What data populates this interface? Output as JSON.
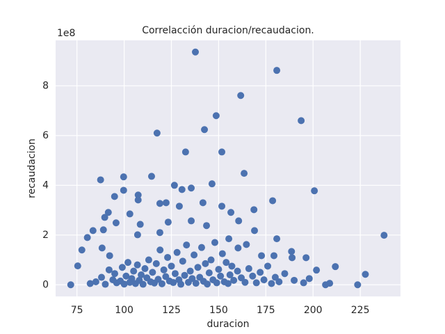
{
  "chart_data": {
    "type": "scatter",
    "title": "Correlacción duracion/recaudacion.",
    "x_label": "duracion",
    "y_label": "recaudacion",
    "y_offset_text": "1e8",
    "color": "#4c72b0",
    "grid": true,
    "xlim": [
      63.7,
      246.3
    ],
    "ylim": [
      -46800000,
      982800000
    ],
    "xticks": [
      75,
      100,
      125,
      150,
      175,
      200,
      225
    ],
    "yticks": [
      0,
      {
        "value": 200000000,
        "label": "2"
      },
      {
        "value": 400000000,
        "label": "4"
      },
      {
        "value": 600000000,
        "label": "6"
      },
      {
        "value": 800000000,
        "label": "8"
      }
    ],
    "x": [
      137.7,
      180.8,
      161.7,
      148.7,
      193.7,
      117.4,
      142.5,
      132.5,
      151.7,
      163.5,
      87.5,
      99.7,
      114.5,
      200.7,
      237.6,
      71.7,
      146.5,
      126.6,
      135.5,
      130.6,
      99.7,
      178.6,
      168.7,
      160.6,
      180.8,
      188.6,
      196.3,
      211.8,
      227.7,
      223.6,
      206.6,
      208.8,
      201.8,
      75.4,
      77.6,
      80.5,
      83.5,
      89.0,
      89.7,
      91.6,
      94.9,
      107.4,
      107.4,
      118.9,
      122.2,
      129.2,
      141.7,
      151.7,
      156.5,
      103.0,
      95.7,
      108.5,
      123.3,
      135.5,
      143.6,
      118.9,
      107.1,
      169.0,
      155.4,
      88.3,
      92.3,
      172.7,
      188.9,
      179.3,
      160.3,
      164.7,
      82,
      85,
      88,
      90,
      92,
      94,
      95,
      96,
      98,
      99,
      100,
      101,
      102,
      103,
      104,
      105,
      106,
      107,
      108,
      109,
      110,
      111,
      112,
      113,
      114,
      115,
      116,
      117,
      118,
      119,
      120,
      121,
      122,
      123,
      124,
      125,
      126,
      127,
      128,
      129,
      130,
      131,
      132,
      133,
      134,
      135,
      136,
      137,
      138,
      139,
      140,
      141,
      142,
      143,
      144,
      145,
      146,
      147,
      148,
      149,
      150,
      151,
      152,
      153,
      154,
      155,
      156,
      157,
      158,
      160,
      162,
      164,
      166,
      168,
      170,
      172,
      174,
      176,
      178,
      180,
      182,
      185,
      190,
      195,
      198
    ],
    "values": [
      936000000,
      862000000,
      761000000,
      680000000,
      660000000,
      610000000,
      624000000,
      534000000,
      534000000,
      448000000,
      422000000,
      434000000,
      436000000,
      378000000,
      199000000,
      0,
      406000000,
      400000000,
      389000000,
      383000000,
      380000000,
      338000000,
      302000000,
      257000000,
      185000000,
      134000000,
      109000000,
      73000000,
      42000000,
      0,
      0,
      6000000,
      59000000,
      76000000,
      140000000,
      190000000,
      218000000,
      221000000,
      271000000,
      291000000,
      355000000,
      341000000,
      361000000,
      327000000,
      330000000,
      316000000,
      330000000,
      316000000,
      291000000,
      285000000,
      249000000,
      243000000,
      252000000,
      257000000,
      238000000,
      210000000,
      201000000,
      218000000,
      185000000,
      148000000,
      117000000,
      117000000,
      109000000,
      117000000,
      148000000,
      162000000,
      5000000,
      12000000,
      30000000,
      2000000,
      60000000,
      20000000,
      45000000,
      8000000,
      15000000,
      70000000,
      3000000,
      35000000,
      90000000,
      10000000,
      25000000,
      55000000,
      5000000,
      80000000,
      18000000,
      40000000,
      2000000,
      65000000,
      28000000,
      100000000,
      12000000,
      50000000,
      7000000,
      85000000,
      22000000,
      140000000,
      4000000,
      60000000,
      33000000,
      110000000,
      15000000,
      75000000,
      9000000,
      45000000,
      130000000,
      20000000,
      2000000,
      95000000,
      38000000,
      160000000,
      10000000,
      55000000,
      25000000,
      120000000,
      6000000,
      70000000,
      30000000,
      150000000,
      14000000,
      85000000,
      3000000,
      48000000,
      100000000,
      20000000,
      170000000,
      8000000,
      62000000,
      35000000,
      125000000,
      12000000,
      90000000,
      5000000,
      40000000,
      75000000,
      18000000,
      55000000,
      28000000,
      10000000,
      65000000,
      35000000,
      8000000,
      50000000,
      20000000,
      75000000,
      5000000,
      30000000,
      12000000,
      45000000,
      18000000,
      8000000,
      25000000
    ]
  }
}
